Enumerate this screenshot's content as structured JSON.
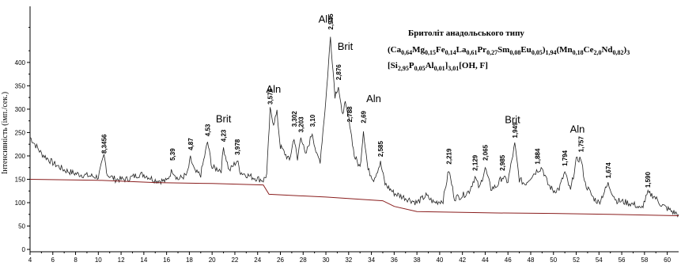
{
  "chart_data": {
    "type": "line",
    "title": "",
    "xlabel": "",
    "ylabel": "Інтенсивність (імп./сек.)",
    "xlim": [
      4,
      61
    ],
    "ylim": [
      -5,
      520
    ],
    "x_ticks": [
      4,
      6,
      8,
      10,
      12,
      14,
      16,
      18,
      20,
      22,
      24,
      26,
      28,
      30,
      32,
      34,
      36,
      38,
      40,
      42,
      44,
      46,
      48,
      50,
      52,
      54,
      56,
      58,
      60
    ],
    "y_ticks": [
      0,
      50,
      100,
      150,
      200,
      250,
      300,
      350,
      400
    ],
    "grid": false,
    "legend": "none",
    "colors": {
      "pattern": "#222222",
      "background_line": "#8a1e1e",
      "text": "#000000"
    },
    "series": [
      {
        "points": [
          [
            4.0,
            240
          ],
          [
            5.0,
            205
          ],
          [
            6.0,
            185
          ],
          [
            7.0,
            170
          ],
          [
            8.0,
            162
          ],
          [
            9.0,
            158
          ],
          [
            10.0,
            155
          ],
          [
            10.5,
            200
          ],
          [
            10.8,
            160
          ],
          [
            11.5,
            150
          ],
          [
            12.5,
            150
          ],
          [
            13.5,
            160
          ],
          [
            14.0,
            160
          ],
          [
            15.0,
            148
          ],
          [
            16.0,
            146
          ],
          [
            16.5,
            170
          ],
          [
            17.0,
            150
          ],
          [
            17.8,
            160
          ],
          [
            18.1,
            195
          ],
          [
            18.5,
            165
          ],
          [
            19.0,
            160
          ],
          [
            19.6,
            230
          ],
          [
            20.0,
            175
          ],
          [
            20.8,
            170
          ],
          [
            21.0,
            218
          ],
          [
            21.5,
            168
          ],
          [
            22.2,
            190
          ],
          [
            22.5,
            165
          ],
          [
            23.5,
            155
          ],
          [
            24.5,
            148
          ],
          [
            24.8,
            160
          ],
          [
            25.1,
            298
          ],
          [
            25.4,
            270
          ],
          [
            25.7,
            292
          ],
          [
            26.0,
            220
          ],
          [
            26.8,
            190
          ],
          [
            27.2,
            240
          ],
          [
            27.5,
            190
          ],
          [
            27.8,
            245
          ],
          [
            28.2,
            200
          ],
          [
            28.8,
            250
          ],
          [
            29.2,
            200
          ],
          [
            29.5,
            190
          ],
          [
            30.0,
            320
          ],
          [
            30.4,
            455
          ],
          [
            30.8,
            330
          ],
          [
            31.1,
            350
          ],
          [
            31.4,
            290
          ],
          [
            31.7,
            310
          ],
          [
            32.1,
            270
          ],
          [
            32.5,
            200
          ],
          [
            33.0,
            175
          ],
          [
            33.3,
            255
          ],
          [
            33.7,
            170
          ],
          [
            34.2,
            150
          ],
          [
            34.8,
            185
          ],
          [
            35.2,
            140
          ],
          [
            36.0,
            120
          ],
          [
            37.0,
            110
          ],
          [
            38.0,
            100
          ],
          [
            38.8,
            115
          ],
          [
            39.5,
            100
          ],
          [
            40.3,
            105
          ],
          [
            40.8,
            170
          ],
          [
            41.3,
            110
          ],
          [
            42.0,
            115
          ],
          [
            42.6,
            125
          ],
          [
            43.1,
            155
          ],
          [
            43.5,
            130
          ],
          [
            44.0,
            175
          ],
          [
            44.5,
            130
          ],
          [
            45.0,
            135
          ],
          [
            45.5,
            155
          ],
          [
            46.0,
            145
          ],
          [
            46.6,
            225
          ],
          [
            47.0,
            150
          ],
          [
            47.5,
            140
          ],
          [
            48.0,
            155
          ],
          [
            48.6,
            170
          ],
          [
            49.0,
            175
          ],
          [
            49.5,
            140
          ],
          [
            50.0,
            125
          ],
          [
            50.5,
            130
          ],
          [
            51.0,
            165
          ],
          [
            51.5,
            125
          ],
          [
            52.0,
            190
          ],
          [
            52.4,
            195
          ],
          [
            52.8,
            140
          ],
          [
            53.5,
            110
          ],
          [
            54.0,
            100
          ],
          [
            54.8,
            140
          ],
          [
            55.5,
            105
          ],
          [
            56.5,
            100
          ],
          [
            57.2,
            95
          ],
          [
            57.7,
            85
          ],
          [
            58.3,
            120
          ],
          [
            58.8,
            115
          ],
          [
            59.5,
            95
          ],
          [
            60.5,
            80
          ],
          [
            61.0,
            75
          ]
        ]
      },
      {
        "points": [
          [
            4.0,
            150
          ],
          [
            10.0,
            148
          ],
          [
            15.0,
            143
          ],
          [
            20.0,
            141
          ],
          [
            24.5,
            138
          ],
          [
            25.0,
            118
          ],
          [
            30.0,
            112
          ],
          [
            35.0,
            104
          ],
          [
            36.0,
            92
          ],
          [
            38.0,
            81
          ],
          [
            45.0,
            78
          ],
          [
            50.0,
            77
          ],
          [
            55.0,
            75
          ],
          [
            61.0,
            72
          ]
        ]
      }
    ],
    "annotations": [
      {
        "text": "8,3456",
        "x": 10.5,
        "y": 205
      },
      {
        "text": "5,39",
        "x": 16.5,
        "y": 190
      },
      {
        "text": "4,87",
        "x": 18.1,
        "y": 212
      },
      {
        "text": "4,53",
        "x": 19.6,
        "y": 242
      },
      {
        "text": "4,23",
        "x": 21.0,
        "y": 230
      },
      {
        "text": "3,978",
        "x": 22.2,
        "y": 202
      },
      {
        "text": "3,576",
        "x": 25.1,
        "y": 310
      },
      {
        "text": "3,302",
        "x": 27.2,
        "y": 262
      },
      {
        "text": "3,203",
        "x": 27.8,
        "y": 250
      },
      {
        "text": "3,10",
        "x": 28.8,
        "y": 262
      },
      {
        "text": "2,945",
        "x": 30.4,
        "y": 470
      },
      {
        "text": "2,876",
        "x": 31.1,
        "y": 362
      },
      {
        "text": "2,788",
        "x": 32.1,
        "y": 272
      },
      {
        "text": "2,69",
        "x": 33.3,
        "y": 270
      },
      {
        "text": "2,585",
        "x": 34.8,
        "y": 198
      },
      {
        "text": "2,219",
        "x": 40.8,
        "y": 182
      },
      {
        "text": "2,129",
        "x": 43.1,
        "y": 168
      },
      {
        "text": "2,065",
        "x": 44.0,
        "y": 190
      },
      {
        "text": "2,985",
        "x": 45.5,
        "y": 168
      },
      {
        "text": "1,949",
        "x": 46.6,
        "y": 238
      },
      {
        "text": "1,884",
        "x": 48.6,
        "y": 182
      },
      {
        "text": "1,794",
        "x": 51.0,
        "y": 178
      },
      {
        "text": "1,757",
        "x": 52.4,
        "y": 208
      },
      {
        "text": "1,674",
        "x": 54.8,
        "y": 152
      },
      {
        "text": "1,590",
        "x": 58.3,
        "y": 132
      }
    ],
    "phase_labels": [
      {
        "text": "Brit",
        "x": 21.0,
        "y": 272
      },
      {
        "text": "Aln",
        "x": 25.4,
        "y": 335
      },
      {
        "text": "Aln",
        "x": 30.0,
        "y": 485
      },
      {
        "text": "Brit",
        "x": 31.7,
        "y": 427
      },
      {
        "text": "Aln",
        "x": 34.2,
        "y": 315
      },
      {
        "text": "Brit",
        "x": 46.4,
        "y": 270
      },
      {
        "text": "Aln",
        "x": 52.1,
        "y": 250
      }
    ]
  },
  "formula_box": {
    "title": "Бритоліт анадольського типу",
    "lines": [
      [
        {
          "t": "(Ca"
        },
        {
          "t": "0,64",
          "sub": true
        },
        {
          "t": "Mg"
        },
        {
          "t": "0,15",
          "sub": true
        },
        {
          "t": "Fe"
        },
        {
          "t": "0,14",
          "sub": true
        },
        {
          "t": "La"
        },
        {
          "t": "0,61",
          "sub": true
        },
        {
          "t": "Pr"
        },
        {
          "t": "0,27",
          "sub": true
        },
        {
          "t": "Sm"
        },
        {
          "t": "0,08",
          "sub": true
        },
        {
          "t": "Eu"
        },
        {
          "t": "0,05",
          "sub": true
        },
        {
          "t": ")"
        },
        {
          "t": "1,94",
          "sub": true
        },
        {
          "t": "(Mn"
        },
        {
          "t": "0,18",
          "sub": true
        },
        {
          "t": "Ce"
        },
        {
          "t": "2,0",
          "sub": true
        },
        {
          "t": "Nd"
        },
        {
          "t": "0,82",
          "sub": true
        },
        {
          "t": ")"
        },
        {
          "t": "3",
          "sub": true
        }
      ],
      [
        {
          "t": "[Si"
        },
        {
          "t": "2,95",
          "sub": true
        },
        {
          "t": "P"
        },
        {
          "t": "0,05",
          "sub": true
        },
        {
          "t": "Al"
        },
        {
          "t": "0,01",
          "sub": true
        },
        {
          "t": "]"
        },
        {
          "t": "3,01",
          "sub": true
        },
        {
          "t": "[OH, F]"
        }
      ]
    ]
  }
}
